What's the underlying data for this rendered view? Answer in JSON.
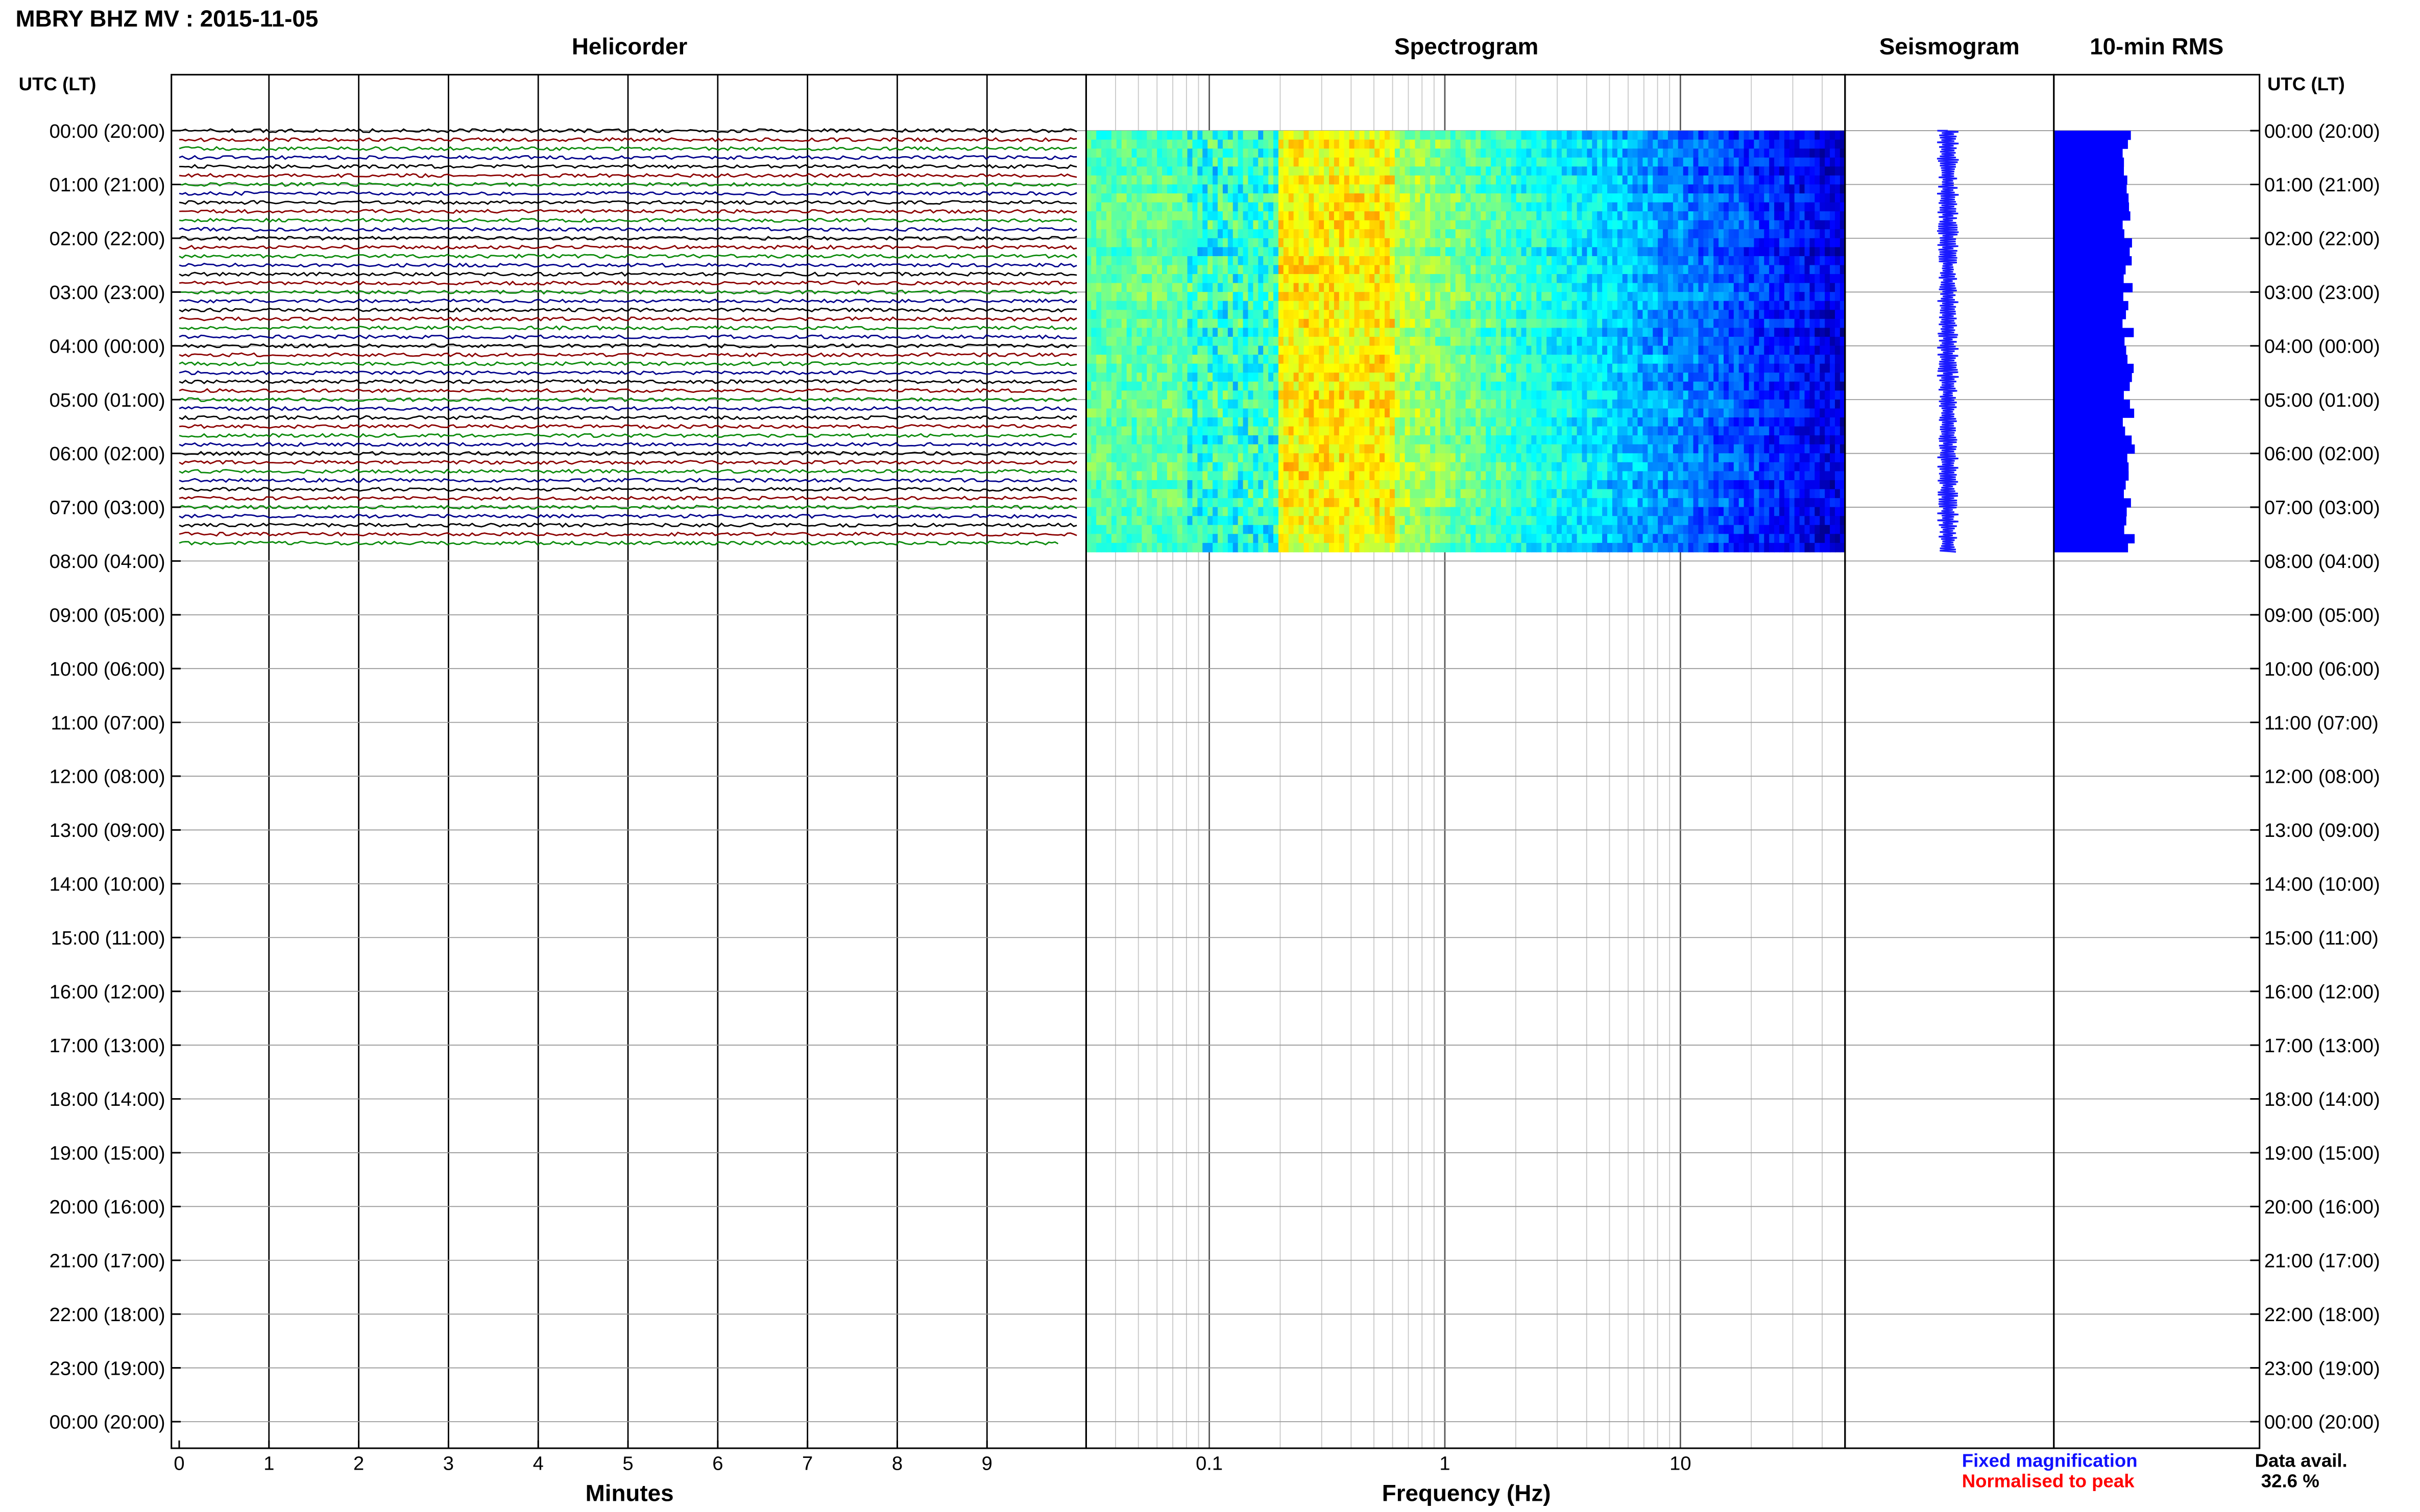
{
  "header": {
    "title": "MBRY BHZ MV : 2015-11-05"
  },
  "panels": {
    "helicorder": "Helicorder",
    "spectrogram": "Spectrogram",
    "seismogram": "Seismogram",
    "rms": "10-min RMS"
  },
  "time_axis": {
    "header_left": "UTC (LT)",
    "header_right": "UTC (LT)",
    "labels": [
      "00:00 (20:00)",
      "01:00 (21:00)",
      "02:00 (22:00)",
      "03:00 (23:00)",
      "04:00 (00:00)",
      "05:00 (01:00)",
      "06:00 (02:00)",
      "07:00 (03:00)",
      "08:00 (04:00)",
      "09:00 (05:00)",
      "10:00 (06:00)",
      "11:00 (07:00)",
      "12:00 (08:00)",
      "13:00 (09:00)",
      "14:00 (10:00)",
      "15:00 (11:00)",
      "16:00 (12:00)",
      "17:00 (13:00)",
      "18:00 (14:00)",
      "19:00 (15:00)",
      "20:00 (16:00)",
      "21:00 (17:00)",
      "22:00 (18:00)",
      "23:00 (19:00)",
      "00:00 (20:00)"
    ]
  },
  "footer": {
    "x_label_minutes": "Minutes",
    "x_label_frequency": "Frequency (Hz)",
    "legend_fixed": "Fixed magnification",
    "legend_normalised": "Normalised to peak",
    "data_avail_label": "Data avail.",
    "data_avail_value": "32.6 %"
  },
  "colors": {
    "fixed": "#1010ff",
    "normalised": "#ff0000",
    "trace_cycle": [
      "#000000",
      "#8b0000",
      "#0b8a0b",
      "#00008b"
    ],
    "seismo": "#1a1aff",
    "rms": "#0000ff"
  },
  "chart_data": [
    {
      "type": "line",
      "title": "Helicorder",
      "xlabel": "Minutes",
      "x_ticks": [
        0,
        1,
        2,
        3,
        4,
        5,
        6,
        7,
        8,
        9
      ],
      "xlim": [
        0,
        10
      ],
      "y_ticks": [
        "00:00",
        "01:00",
        "02:00",
        "03:00",
        "04:00",
        "05:00",
        "06:00",
        "07:00",
        "08:00",
        "09:00",
        "10:00",
        "11:00",
        "12:00",
        "13:00",
        "14:00",
        "15:00",
        "16:00",
        "17:00",
        "18:00",
        "19:00",
        "20:00",
        "21:00",
        "22:00",
        "23:00",
        "00:00"
      ],
      "ylim_hours": [
        0,
        24
      ],
      "data_end_hours": 7.83,
      "row_minutes": 10,
      "series_color_cycle": [
        "black",
        "darkred",
        "green",
        "darkblue"
      ]
    },
    {
      "type": "heatmap",
      "title": "Spectrogram",
      "xlabel": "Frequency (Hz)",
      "x_scale": "log",
      "x_ticks": [
        0.1,
        1,
        10
      ],
      "xlim": [
        0.03,
        50
      ],
      "ylim_hours": [
        0,
        24
      ],
      "data_end_hours": 7.83,
      "colormap": "jet",
      "peak_band_hz": [
        0.2,
        0.6
      ]
    },
    {
      "type": "line",
      "title": "Seismogram",
      "ylim_hours": [
        0,
        24
      ],
      "data_end_hours": 7.83
    },
    {
      "type": "bar",
      "title": "10-min RMS",
      "ylim_hours": [
        0,
        24
      ],
      "data_end_hours": 7.83,
      "orientation": "horizontal"
    }
  ]
}
